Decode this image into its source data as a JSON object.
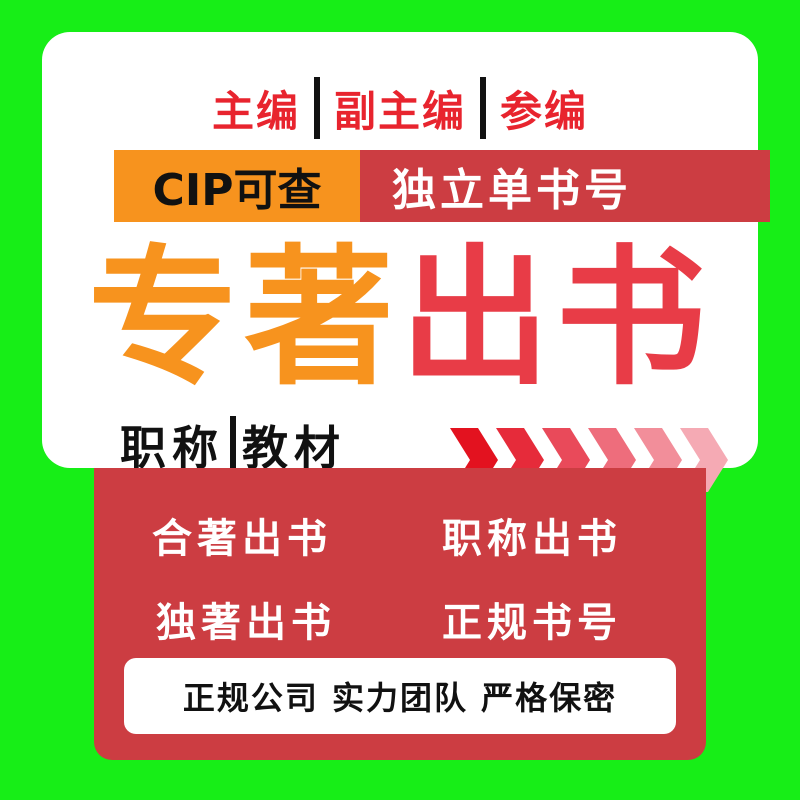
{
  "top_roles": [
    "主编",
    "副主编",
    "参编"
  ],
  "cip_label": "CIP可查",
  "isbn_label": "独立单书号",
  "headline": {
    "part1": "专著",
    "part2": "出书"
  },
  "subline": {
    "left": "职称",
    "right": "教材"
  },
  "features": [
    "合著出书",
    "职称出书",
    "独著出书",
    "正规书号"
  ],
  "slogan": "正规公司 实力团队 严格保密",
  "colors": {
    "background": "#17ee17",
    "orange": "#f7931e",
    "red": "#e83c47",
    "panel_red": "#cc3d42"
  }
}
